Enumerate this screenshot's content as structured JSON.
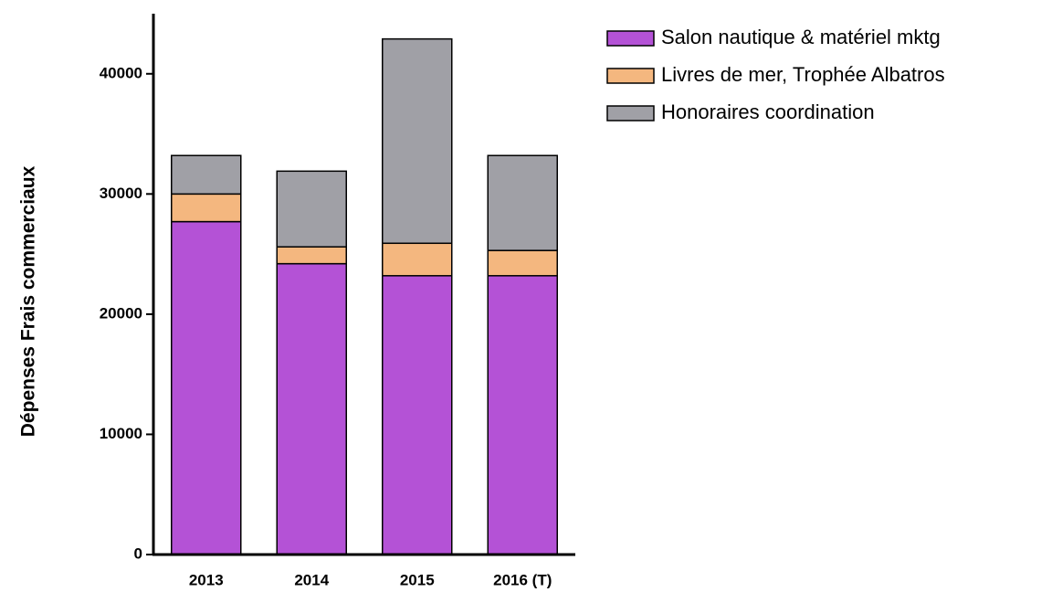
{
  "chart_data": {
    "type": "stacked_bar",
    "y_label": "Dépenses Frais commerciaux",
    "categories": [
      "2013",
      "2014",
      "2015",
      "2016 (T)"
    ],
    "series": [
      {
        "name": "Salon nautique & matériel mktg",
        "color": "#b452d6",
        "values": [
          27700,
          24200,
          23200,
          23200
        ]
      },
      {
        "name": "Livres de mer, Trophée Albatros",
        "color": "#f4b77f",
        "values": [
          2300,
          1400,
          2700,
          2100
        ]
      },
      {
        "name": "Honoraires coordination",
        "color": "#a0a0a6",
        "values": [
          3200,
          6300,
          17000,
          7900
        ]
      }
    ],
    "ylim": [
      0,
      45000
    ],
    "yticks": [
      0,
      10000,
      20000,
      30000,
      40000
    ],
    "legend": "right"
  }
}
